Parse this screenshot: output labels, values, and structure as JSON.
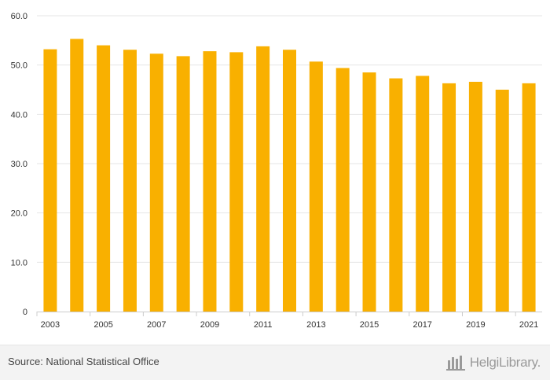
{
  "chart_data": {
    "type": "bar",
    "categories": [
      "2003",
      "2004",
      "2005",
      "2006",
      "2007",
      "2008",
      "2009",
      "2010",
      "2011",
      "2012",
      "2013",
      "2014",
      "2015",
      "2016",
      "2017",
      "2018",
      "2019",
      "2020",
      "2021"
    ],
    "x_tick_labels": [
      "2003",
      "2005",
      "2007",
      "2009",
      "2011",
      "2013",
      "2015",
      "2017",
      "2019",
      "2021"
    ],
    "values": [
      53.2,
      55.3,
      54.0,
      53.1,
      52.3,
      51.8,
      52.8,
      52.6,
      53.8,
      53.1,
      50.7,
      49.4,
      48.5,
      47.3,
      47.8,
      46.3,
      46.6,
      45.0,
      46.3
    ],
    "y_tick_labels": [
      "0",
      "10.0",
      "20.0",
      "30.0",
      "40.0",
      "50.0",
      "60.0"
    ],
    "ylim": [
      0,
      60
    ],
    "grid": true,
    "bar_color": "#f9b000",
    "grid_color": "#e6e6e6",
    "title": "",
    "xlabel": "",
    "ylabel": ""
  },
  "footer": {
    "source": "Source: National Statistical Office",
    "logo_text": "HelgiLibrary."
  }
}
